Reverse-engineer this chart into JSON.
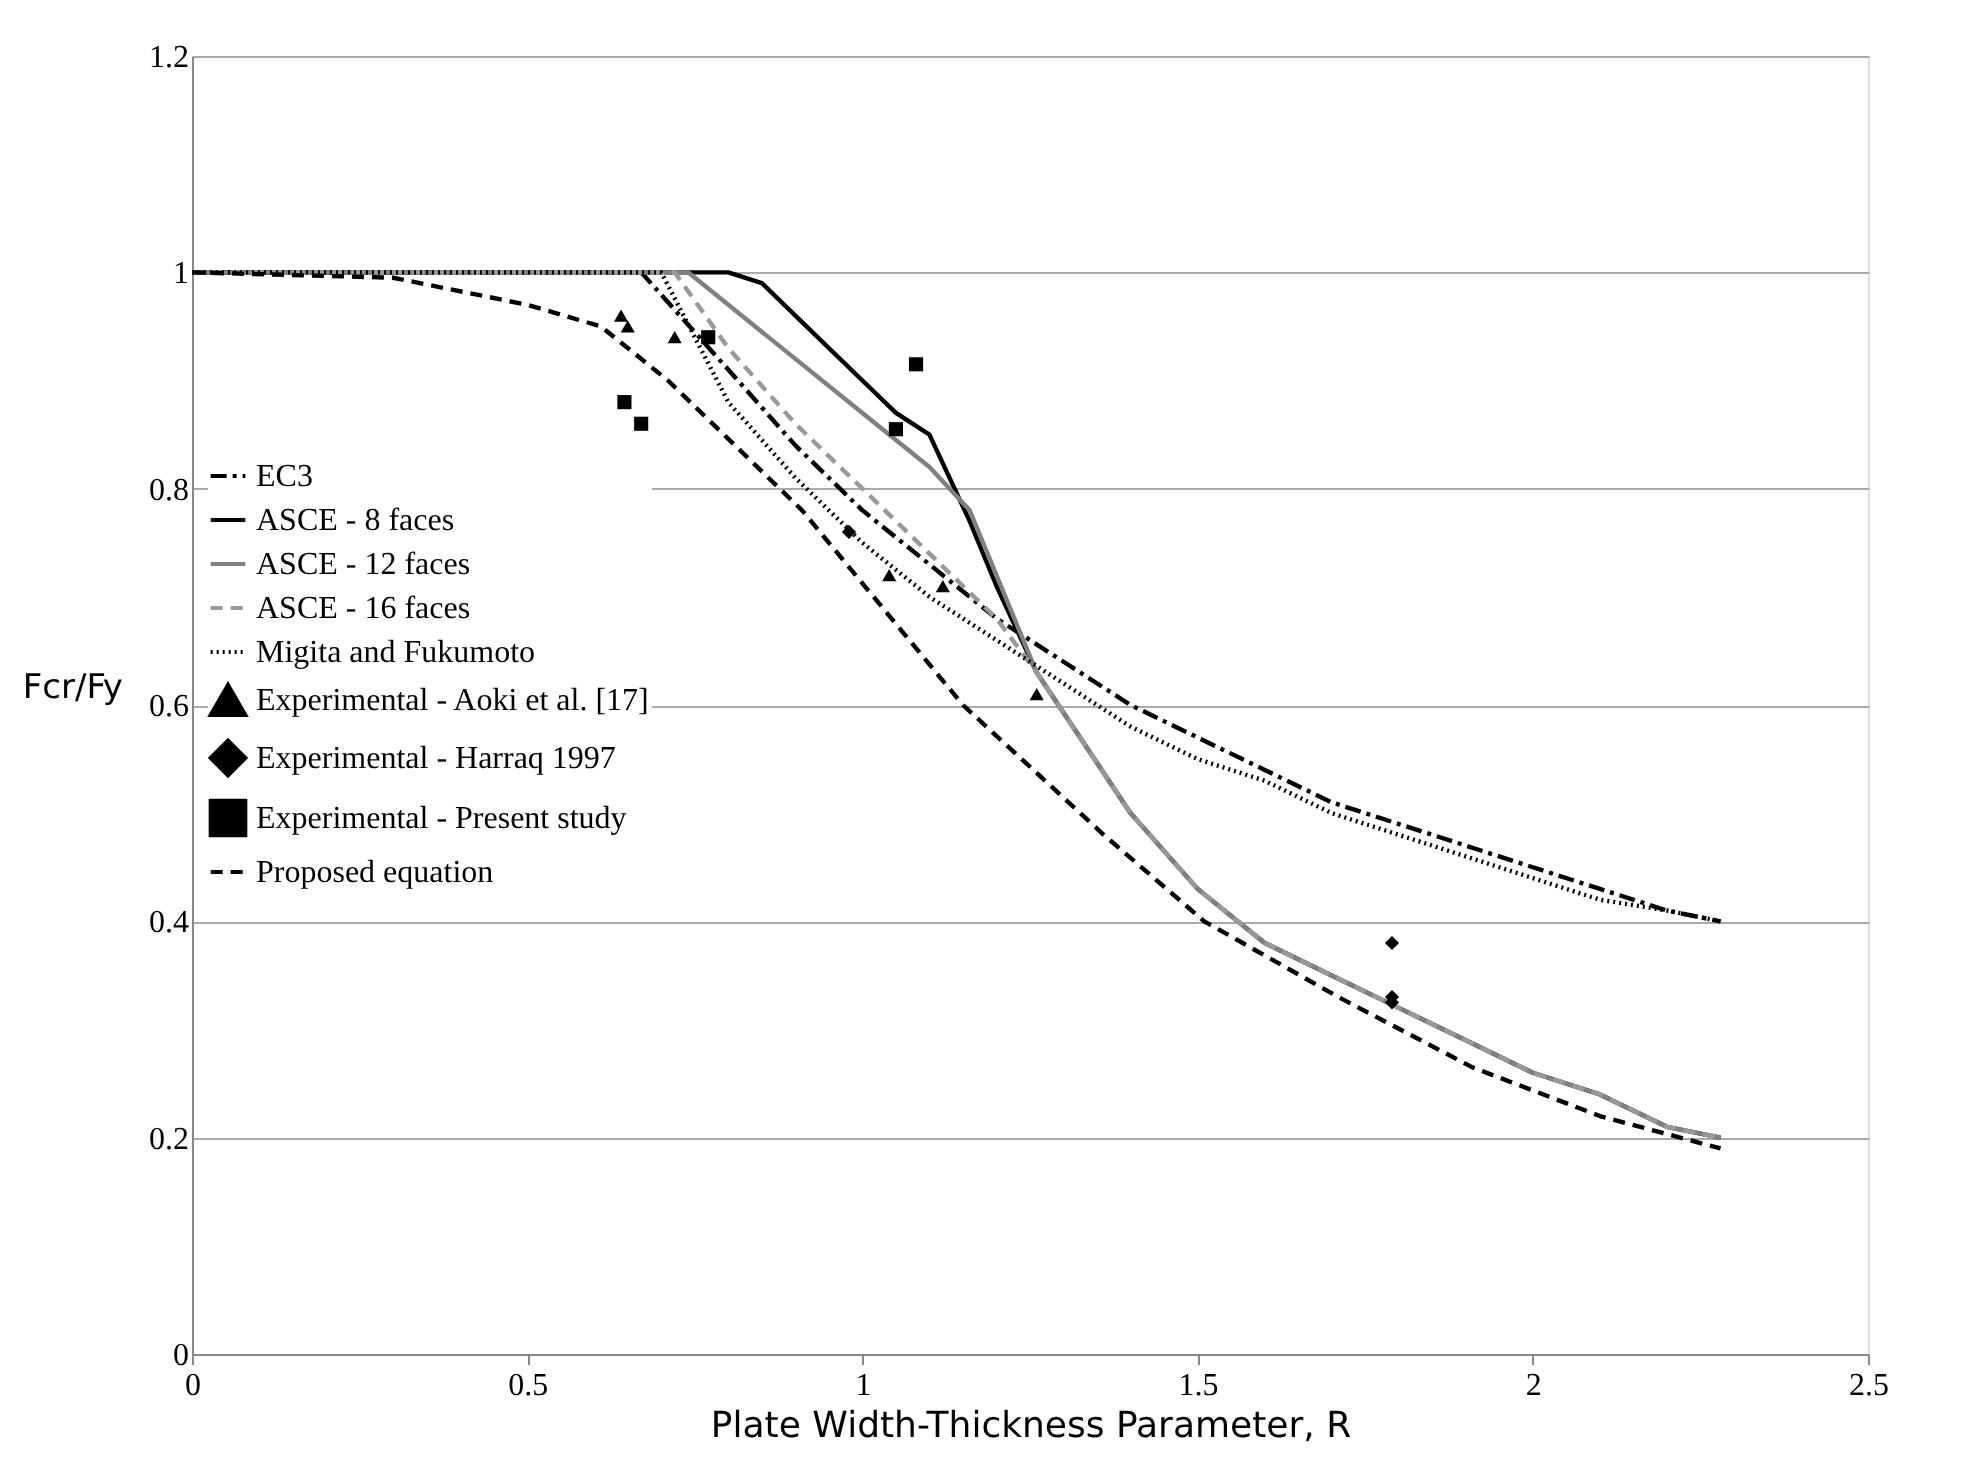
{
  "chart_data": {
    "type": "line",
    "xlabel": "Plate Width-Thickness Parameter, R",
    "ylabel": "Fcr/Fy",
    "xlim": [
      0,
      2.5
    ],
    "xticks": [
      0,
      0.5,
      1,
      1.5,
      2,
      2.5
    ],
    "ylim": [
      0,
      1.2
    ],
    "yticks": [
      0,
      0.2,
      0.4,
      0.6,
      0.8,
      1,
      1.2
    ],
    "grid": "y",
    "legend": "left",
    "series": [
      {
        "name": "EC3",
        "type": "line",
        "color": "#000000",
        "line_style": "dashdot",
        "x": [
          0,
          0.67,
          0.8,
          0.9,
          1.0,
          1.1,
          1.2,
          1.3,
          1.4,
          1.5,
          1.6,
          1.7,
          1.8,
          1.9,
          2.0,
          2.1,
          2.2,
          2.28
        ],
        "values": [
          1,
          1,
          0.91,
          0.84,
          0.78,
          0.73,
          0.68,
          0.64,
          0.6,
          0.57,
          0.54,
          0.51,
          0.49,
          0.47,
          0.45,
          0.43,
          0.41,
          0.4
        ]
      },
      {
        "name": "ASCE - 8 faces",
        "type": "line",
        "color": "#000000",
        "line_style": "solid",
        "x": [
          0,
          0.8,
          0.85,
          0.9,
          1.0,
          1.05,
          1.1,
          1.16,
          1.2,
          1.26,
          1.4,
          1.5,
          1.6,
          1.7,
          1.8,
          1.9,
          2.0,
          2.1,
          2.2,
          2.28
        ],
        "values": [
          1,
          1,
          0.99,
          0.96,
          0.9,
          0.87,
          0.85,
          0.77,
          0.71,
          0.63,
          0.5,
          0.43,
          0.38,
          0.35,
          0.32,
          0.29,
          0.26,
          0.24,
          0.21,
          0.2
        ]
      },
      {
        "name": "ASCE - 12 faces",
        "type": "line",
        "color": "#808080",
        "line_style": "solid",
        "x": [
          0,
          0.74,
          0.8,
          0.9,
          1.0,
          1.1,
          1.16,
          1.26,
          1.4,
          1.5,
          1.6,
          1.7,
          1.8,
          1.9,
          2.0,
          2.1,
          2.2,
          2.28
        ],
        "values": [
          1,
          1,
          0.97,
          0.92,
          0.87,
          0.82,
          0.78,
          0.63,
          0.5,
          0.43,
          0.38,
          0.35,
          0.32,
          0.29,
          0.26,
          0.24,
          0.21,
          0.2
        ]
      },
      {
        "name": "ASCE - 16 faces",
        "type": "line",
        "color": "#999999",
        "line_style": "dashed",
        "x": [
          0,
          0.72,
          0.8,
          0.9,
          1.0,
          1.1,
          1.2,
          1.26,
          1.4,
          1.5,
          1.6,
          1.7,
          1.8,
          1.9,
          2.0,
          2.1,
          2.2,
          2.28
        ],
        "values": [
          1,
          1,
          0.93,
          0.86,
          0.8,
          0.74,
          0.68,
          0.63,
          0.5,
          0.43,
          0.38,
          0.35,
          0.32,
          0.29,
          0.26,
          0.24,
          0.21,
          0.2
        ]
      },
      {
        "name": "Migita and Fukumoto",
        "type": "line",
        "color": "#000000",
        "line_style": "dotted",
        "x": [
          0,
          0.7,
          0.8,
          0.9,
          1.0,
          1.1,
          1.2,
          1.3,
          1.4,
          1.5,
          1.6,
          1.7,
          1.8,
          1.9,
          2.0,
          2.1,
          2.2,
          2.28
        ],
        "values": [
          1,
          1,
          0.88,
          0.81,
          0.75,
          0.7,
          0.66,
          0.62,
          0.58,
          0.55,
          0.53,
          0.5,
          0.48,
          0.46,
          0.44,
          0.42,
          0.41,
          0.4
        ]
      },
      {
        "name": "Experimental - Aoki et al. [17]",
        "type": "scatter",
        "color": "#000000",
        "marker": "triangle",
        "x": [
          0.64,
          0.65,
          0.72,
          1.04,
          1.12,
          1.26
        ],
        "values": [
          0.96,
          0.95,
          0.94,
          0.72,
          0.71,
          0.61
        ]
      },
      {
        "name": "Experimental - Harraq 1997",
        "type": "scatter",
        "color": "#000000",
        "marker": "diamond",
        "x": [
          0.98,
          1.79,
          1.79,
          1.79
        ],
        "values": [
          0.76,
          0.38,
          0.33,
          0.325
        ]
      },
      {
        "name": "Experimental - Present study",
        "type": "scatter",
        "color": "#000000",
        "marker": "square",
        "x": [
          0.645,
          0.67,
          0.77,
          1.05,
          1.08
        ],
        "values": [
          0.88,
          0.86,
          0.94,
          0.855,
          0.915
        ]
      },
      {
        "name": "Proposed equation",
        "type": "line",
        "color": "#000000",
        "line_style": "dashed",
        "x": [
          0,
          0.3,
          0.5,
          0.61,
          0.71,
          0.91,
          1.11,
          1.15,
          1.36,
          1.51,
          1.71,
          1.91,
          2.1,
          2.28
        ],
        "values": [
          1,
          0.995,
          0.97,
          0.95,
          0.9,
          0.78,
          0.63,
          0.6,
          0.48,
          0.4,
          0.33,
          0.265,
          0.22,
          0.19
        ]
      }
    ]
  }
}
